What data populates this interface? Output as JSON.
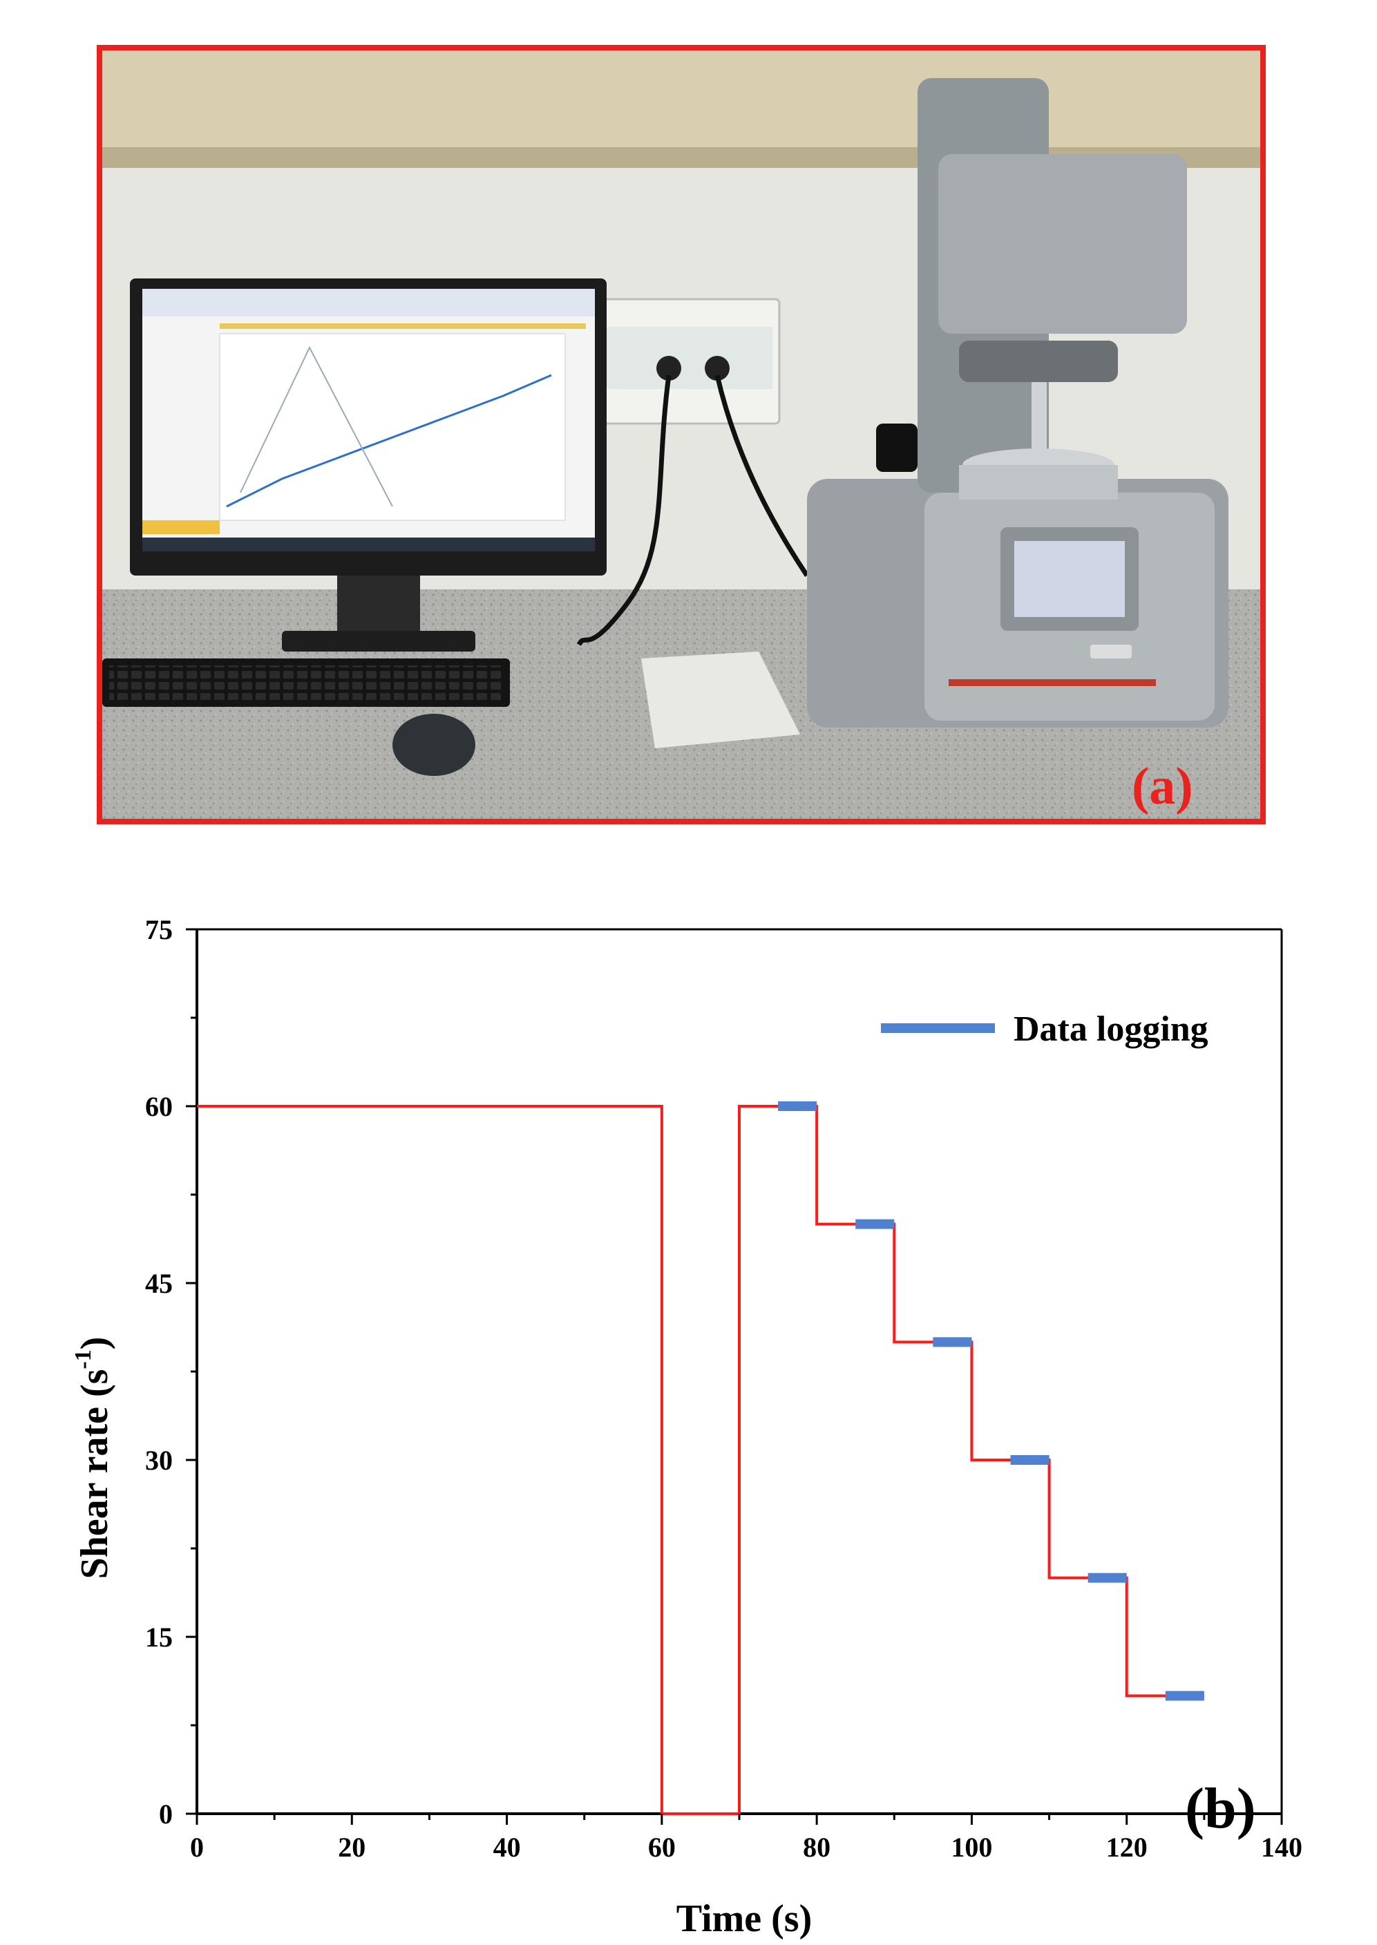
{
  "figure": {
    "panel_a": {
      "label": "(a)",
      "label_color": "#e8231f",
      "frame_color": "#e8231f"
    },
    "panel_b": {
      "label": "(b)"
    }
  },
  "colors": {
    "step_line": "#ff1a1a",
    "logging_marker": "#4f81d0",
    "axis": "#000000"
  },
  "chart_data": {
    "type": "line",
    "xlabel": "Time (s)",
    "ylabel": "Shear rate (s",
    "ylabel_superscript": "-1",
    "ylabel_close": ")",
    "xlim": [
      0,
      140
    ],
    "ylim": [
      0,
      75
    ],
    "xticks": [
      0,
      20,
      40,
      60,
      80,
      100,
      120,
      140
    ],
    "yticks": [
      0,
      15,
      30,
      45,
      60,
      75
    ],
    "grid": false,
    "legend_position": "top-right",
    "series": [
      {
        "style": "step-line",
        "color": "#ff1a1a",
        "x": [
          0,
          60,
          60,
          70,
          70,
          80,
          80,
          90,
          90,
          100,
          100,
          110,
          110,
          120,
          120,
          130
        ],
        "y": [
          60,
          60,
          0,
          0,
          60,
          60,
          50,
          50,
          40,
          40,
          30,
          30,
          20,
          20,
          10,
          10
        ]
      },
      {
        "name": "Data logging",
        "style": "segments",
        "color": "#4f81d0",
        "segments": [
          {
            "x0": 75,
            "x1": 80,
            "y": 60
          },
          {
            "x0": 85,
            "x1": 90,
            "y": 50
          },
          {
            "x0": 95,
            "x1": 100,
            "y": 40
          },
          {
            "x0": 105,
            "x1": 110,
            "y": 30
          },
          {
            "x0": 115,
            "x1": 120,
            "y": 20
          },
          {
            "x0": 125,
            "x1": 130,
            "y": 10
          }
        ]
      }
    ]
  }
}
